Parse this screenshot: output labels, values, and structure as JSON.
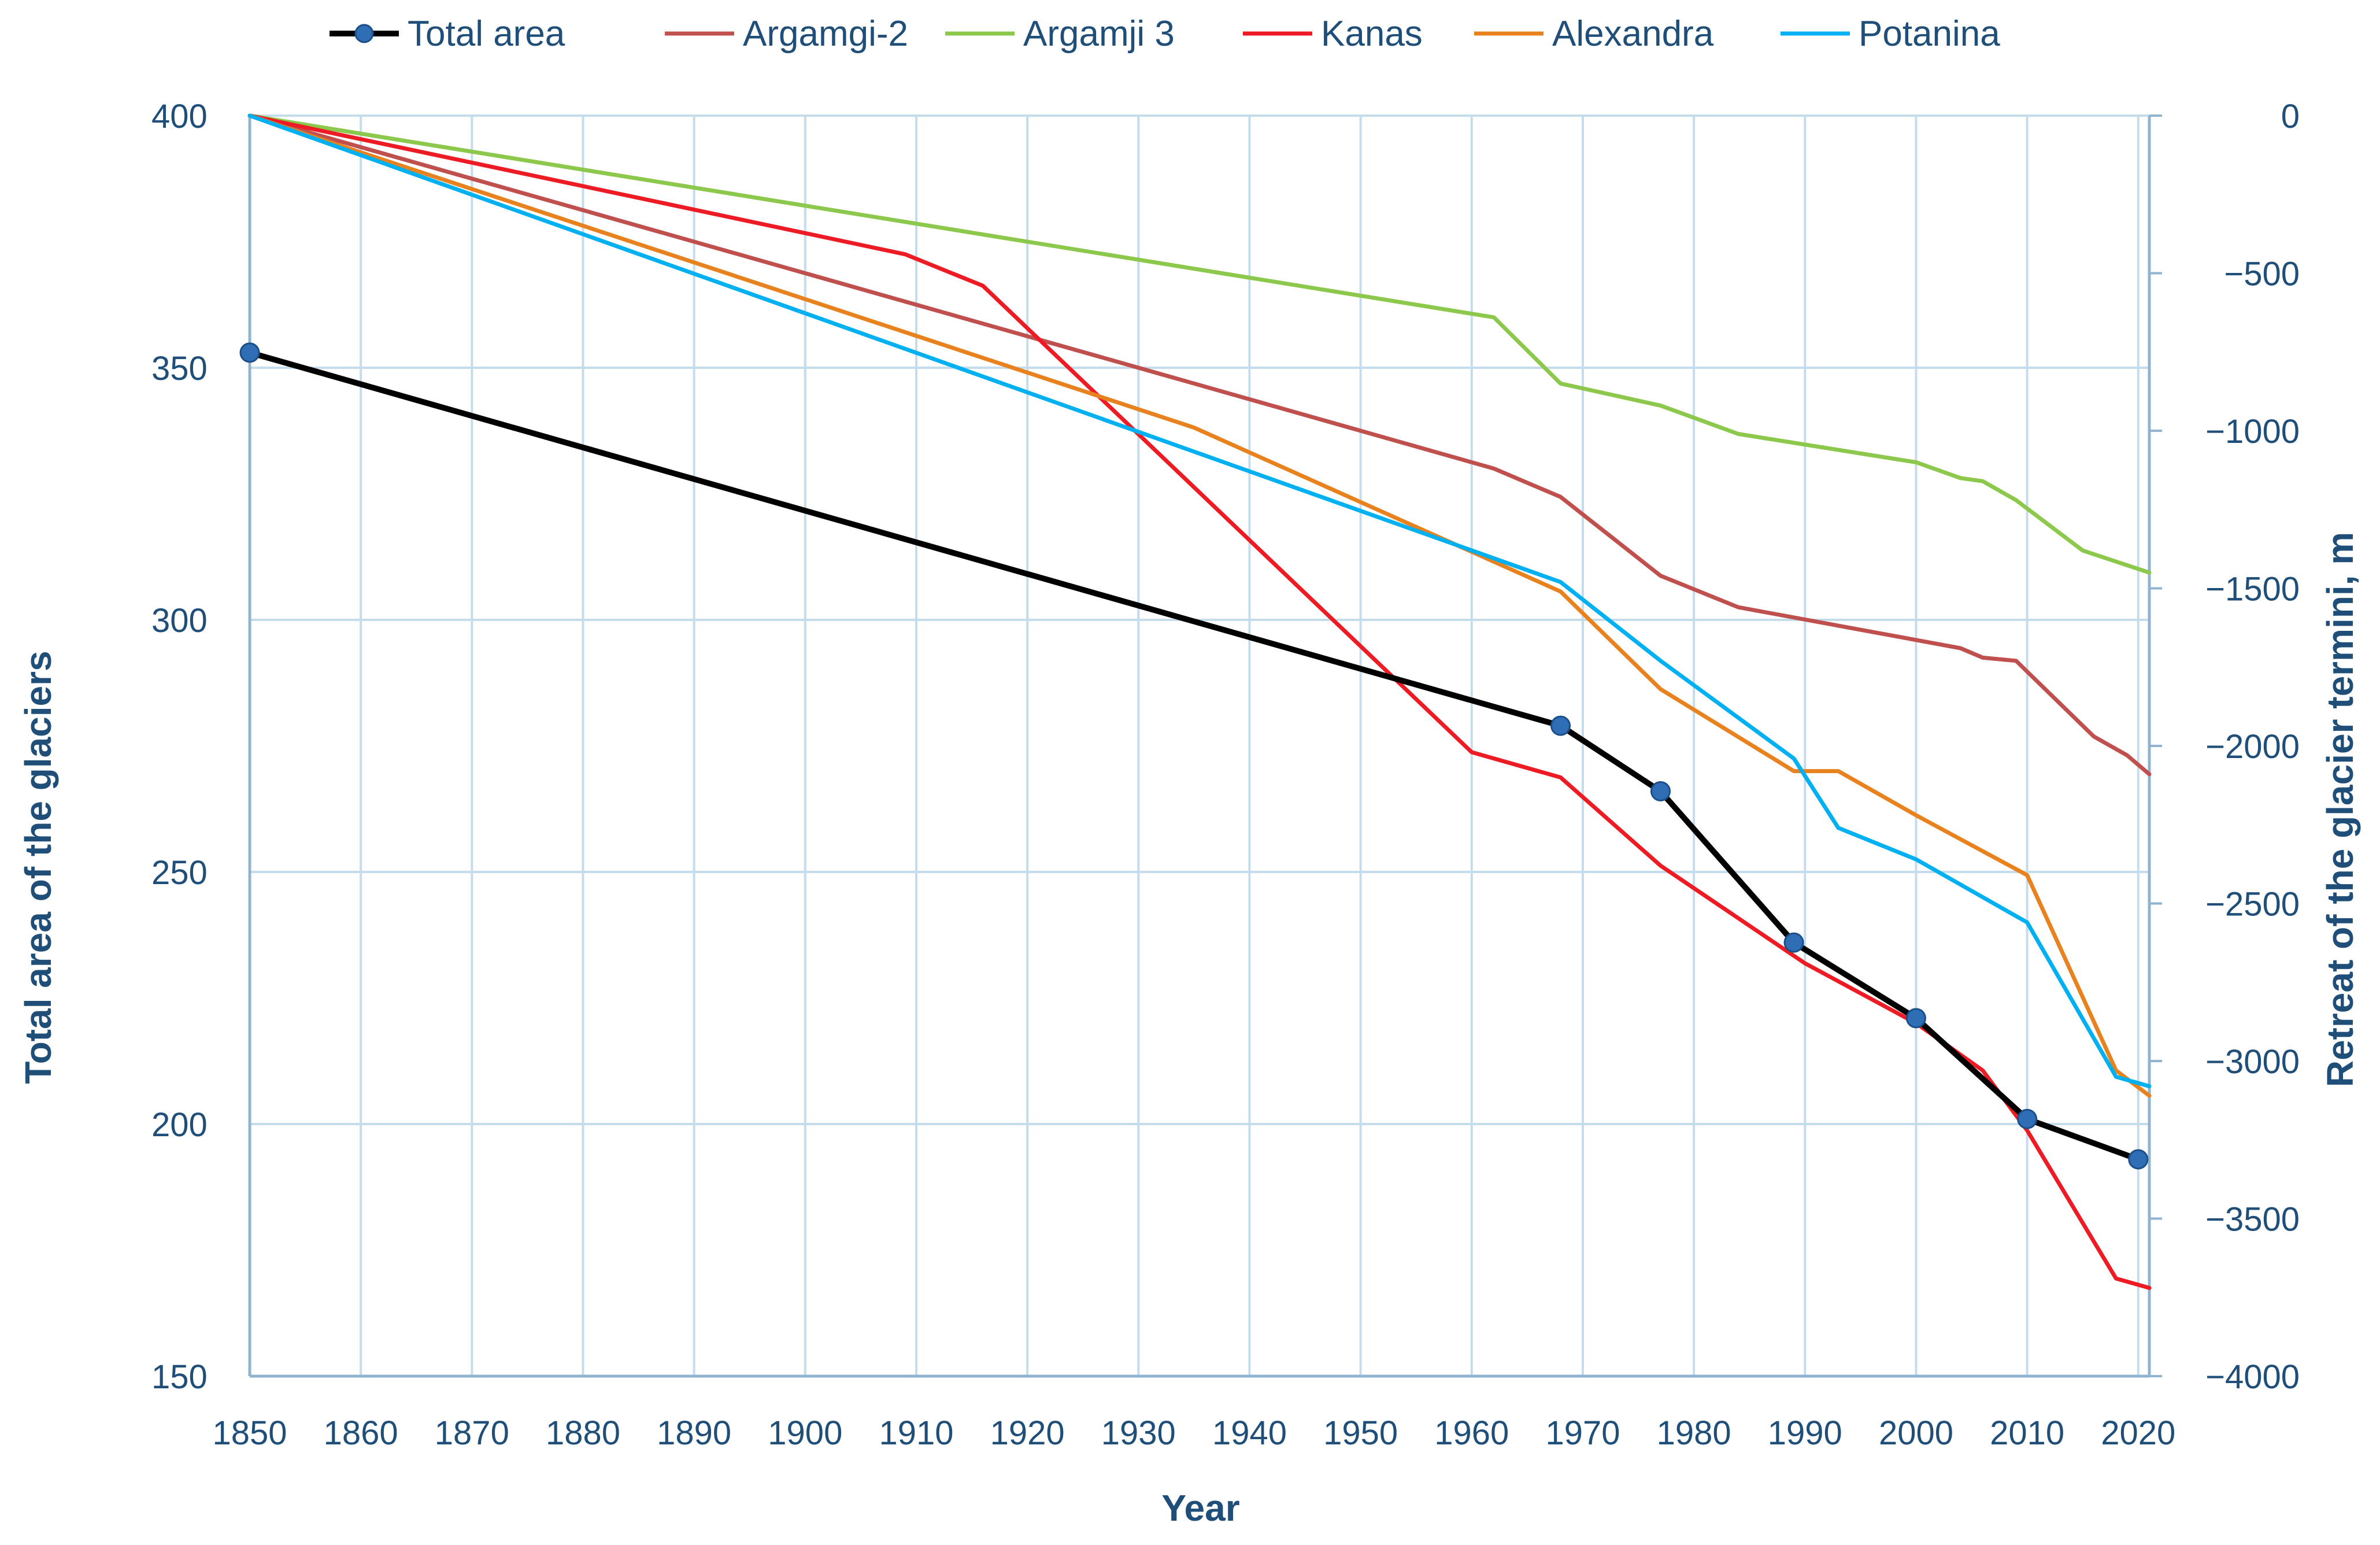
{
  "chart_data": {
    "type": "line",
    "title": "",
    "xlabel": "Year",
    "ylabel_left": "Total area of the glaciers",
    "ylabel_right": "Retreat of the glacier termini, m",
    "xlim": [
      1850,
      2021
    ],
    "ylim_left": [
      150,
      400
    ],
    "ylim_right": [
      -4000,
      0
    ],
    "x_ticks": [
      1850,
      1860,
      1870,
      1880,
      1890,
      1900,
      1910,
      1920,
      1930,
      1940,
      1950,
      1960,
      1970,
      1980,
      1990,
      2000,
      2010,
      2020
    ],
    "y_ticks_left": [
      {
        "value": 400,
        "label": "400"
      },
      {
        "value": 350,
        "label": "350"
      },
      {
        "value": 300,
        "label": "300"
      },
      {
        "value": 250,
        "label": "250"
      },
      {
        "value": 200,
        "label": "200"
      },
      {
        "value": 150,
        "label": "150"
      }
    ],
    "y_ticks_right": [
      {
        "value": 0,
        "label": "0"
      },
      {
        "value": -500,
        "label": "−500"
      },
      {
        "value": -1000,
        "label": "−1000"
      },
      {
        "value": -1500,
        "label": "−1500"
      },
      {
        "value": -2000,
        "label": "−2000"
      },
      {
        "value": -2500,
        "label": "−2500"
      },
      {
        "value": -3000,
        "label": "−3000"
      },
      {
        "value": -3500,
        "label": "−3500"
      },
      {
        "value": -4000,
        "label": "−4000"
      }
    ],
    "grid": true,
    "legend_position": "top",
    "series": [
      {
        "name": "Total area",
        "axis": "left",
        "color": "#000000",
        "markers": true,
        "marker_color": "#2f6eb5",
        "x": [
          1850,
          1968,
          1977,
          1989,
          2000,
          2010,
          2020
        ],
        "y": [
          353,
          279,
          266,
          236,
          221,
          201,
          193
        ]
      },
      {
        "name": "Argamgi-2",
        "axis": "right",
        "color": "#c0504d",
        "markers": false,
        "x": [
          1850,
          1962,
          1968,
          1977,
          1984,
          2004,
          2006,
          2009,
          2016,
          2019,
          2021
        ],
        "y": [
          0,
          -1120,
          -1210,
          -1460,
          -1560,
          -1690,
          -1720,
          -1730,
          -1970,
          -2030,
          -2090
        ]
      },
      {
        "name": "Argamji 3",
        "axis": "right",
        "color": "#8cc84b",
        "markers": false,
        "x": [
          1850,
          1962,
          1968,
          1977,
          1984,
          2000,
          2004,
          2006,
          2009,
          2015,
          2021
        ],
        "y": [
          0,
          -640,
          -850,
          -920,
          -1010,
          -1100,
          -1150,
          -1160,
          -1220,
          -1380,
          -1450
        ]
      },
      {
        "name": "Kanas",
        "axis": "right",
        "color": "#ed1c24",
        "markers": false,
        "x": [
          1850,
          1909,
          1916,
          1960,
          1968,
          1977,
          1990,
          2000,
          2006,
          2010,
          2018,
          2021
        ],
        "y": [
          0,
          -440,
          -540,
          -2020,
          -2100,
          -2380,
          -2690,
          -2880,
          -3030,
          -3220,
          -3690,
          -3720
        ]
      },
      {
        "name": "Alexandra",
        "axis": "right",
        "color": "#e8821e",
        "markers": false,
        "x": [
          1850,
          1935,
          1968,
          1977,
          1989,
          1993,
          2000,
          2010,
          2018,
          2021
        ],
        "y": [
          0,
          -990,
          -1510,
          -1820,
          -2080,
          -2080,
          -2220,
          -2410,
          -3030,
          -3110
        ]
      },
      {
        "name": "Potanina",
        "axis": "right",
        "color": "#00b0f0",
        "markers": false,
        "x": [
          1850,
          1968,
          1977,
          1989,
          1993,
          2000,
          2010,
          2018,
          2021
        ],
        "y": [
          0,
          -1480,
          -1730,
          -2040,
          -2260,
          -2360,
          -2560,
          -3050,
          -3080
        ]
      }
    ]
  }
}
